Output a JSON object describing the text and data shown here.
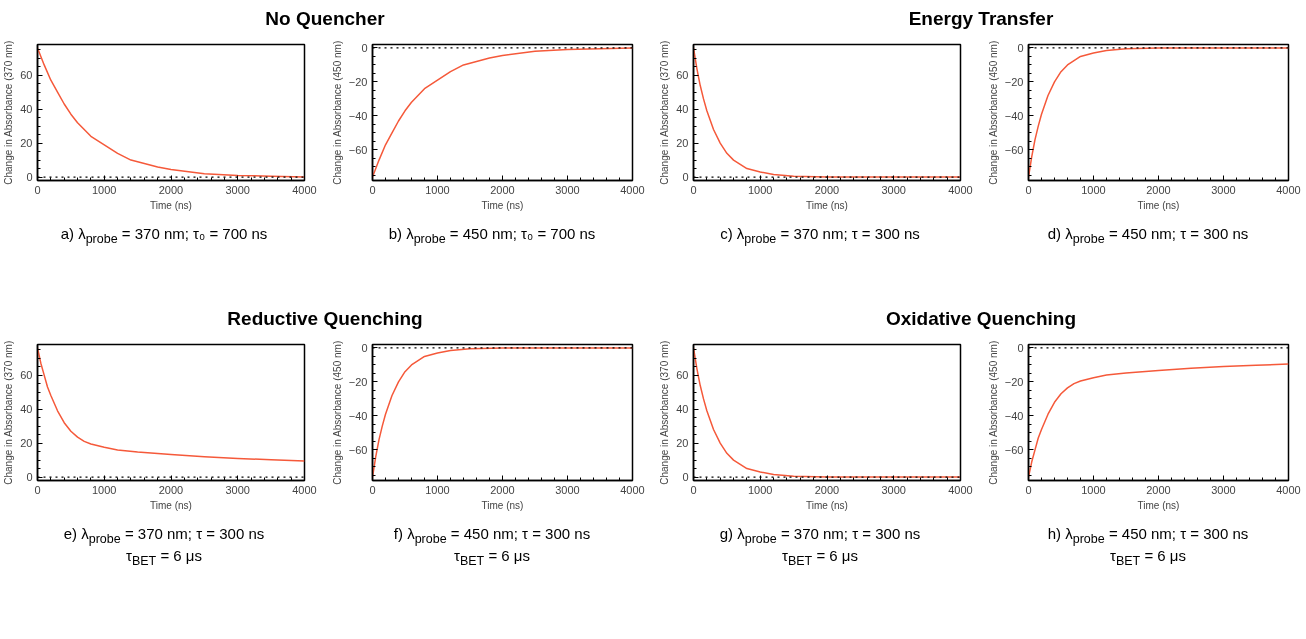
{
  "chart_data": [
    {
      "type": "line",
      "title": "No Quencher",
      "xlabel": "Time (ns)",
      "ylabel": "Change in Absorbance (370 nm)",
      "x": [
        0,
        100,
        200,
        300,
        400,
        500,
        600,
        800,
        1000,
        1200,
        1400,
        1600,
        1800,
        2000,
        2500,
        3000,
        3500,
        4000
      ],
      "series": [
        {
          "color": "#f5593a",
          "values": [
            76,
            66,
            57,
            50,
            43,
            37,
            32,
            24,
            19,
            14,
            10,
            8,
            6,
            4.5,
            2,
            1,
            0.5,
            0
          ]
        }
      ],
      "xlim": [
        0,
        4000
      ],
      "ylim": [
        -2,
        78
      ],
      "xticks": [
        0,
        1000,
        2000,
        3000,
        4000
      ],
      "yticks": [
        0,
        20,
        40,
        60
      ],
      "grid": false,
      "line_style": "solid",
      "ref_lines": [
        {
          "axis": "y",
          "value": 0,
          "label": null,
          "color": "#000000",
          "line_style": "dotted"
        }
      ],
      "annotations": [
        "a) λ$_{probe}$ = 370 nm; τ₀ = 700 ns"
      ]
    },
    {
      "type": "line",
      "xlabel": "Time (ns)",
      "ylabel": "Change in Absorbance (450 nm)",
      "x": [
        0,
        100,
        200,
        300,
        400,
        500,
        600,
        800,
        1000,
        1200,
        1400,
        1600,
        1800,
        2000,
        2500,
        3000,
        3500,
        4000
      ],
      "series": [
        {
          "color": "#f5593a",
          "values": [
            -76,
            -66,
            -57,
            -50,
            -43,
            -37,
            -32,
            -24,
            -19,
            -14,
            -10,
            -8,
            -6,
            -4.5,
            -2,
            -1,
            -0.5,
            0
          ]
        }
      ],
      "xlim": [
        0,
        4000
      ],
      "ylim": [
        -78,
        2
      ],
      "xticks": [
        0,
        1000,
        2000,
        3000,
        4000
      ],
      "yticks": [
        -60,
        -40,
        -20,
        0
      ],
      "grid": false,
      "line_style": "solid",
      "ref_lines": [
        {
          "axis": "y",
          "value": 0,
          "label": null,
          "color": "#000000",
          "line_style": "dotted"
        }
      ],
      "annotations": [
        "b) λ$_{probe}$ = 450 nm; τ₀ = 700 ns"
      ]
    },
    {
      "type": "line",
      "title": "Energy Transfer",
      "xlabel": "Time (ns)",
      "ylabel": "Change in Absorbance (370 nm)",
      "x": [
        0,
        50,
        100,
        150,
        200,
        300,
        400,
        500,
        600,
        800,
        1000,
        1200,
        1500,
        2000,
        3000,
        4000
      ],
      "series": [
        {
          "color": "#f5593a",
          "values": [
            76,
            64,
            54,
            46,
            39,
            28,
            20,
            14,
            10,
            5,
            3,
            1.5,
            0.5,
            0,
            0,
            0
          ]
        }
      ],
      "xlim": [
        0,
        4000
      ],
      "ylim": [
        -2,
        78
      ],
      "xticks": [
        0,
        1000,
        2000,
        3000,
        4000
      ],
      "yticks": [
        0,
        20,
        40,
        60
      ],
      "grid": false,
      "line_style": "solid",
      "ref_lines": [
        {
          "axis": "y",
          "value": 0,
          "label": null,
          "color": "#000000",
          "line_style": "dotted"
        }
      ],
      "annotations": [
        "c) λ$_{probe}$ = 370 nm; τ = 300 ns"
      ]
    },
    {
      "type": "line",
      "xlabel": "Time (ns)",
      "ylabel": "Change in Absorbance (450 nm)",
      "x": [
        0,
        50,
        100,
        150,
        200,
        300,
        400,
        500,
        600,
        800,
        1000,
        1200,
        1500,
        2000,
        3000,
        4000
      ],
      "series": [
        {
          "color": "#f5593a",
          "values": [
            -76,
            -64,
            -54,
            -46,
            -39,
            -28,
            -20,
            -14,
            -10,
            -5,
            -3,
            -1.5,
            -0.5,
            0,
            0,
            0
          ]
        }
      ],
      "xlim": [
        0,
        4000
      ],
      "ylim": [
        -78,
        2
      ],
      "xticks": [
        0,
        1000,
        2000,
        3000,
        4000
      ],
      "yticks": [
        -60,
        -40,
        -20,
        0
      ],
      "grid": false,
      "line_style": "solid",
      "ref_lines": [
        {
          "axis": "y",
          "value": 0,
          "label": null,
          "color": "#000000",
          "line_style": "dotted"
        }
      ],
      "annotations": [
        "d) λ$_{probe}$ = 450 nm; τ = 300 ns"
      ]
    },
    {
      "type": "line",
      "title": "Reductive Quenching",
      "xlabel": "Time (ns)",
      "ylabel": "Change in Absorbance (370 nm)",
      "x": [
        0,
        50,
        100,
        150,
        200,
        300,
        400,
        500,
        600,
        700,
        800,
        1000,
        1200,
        1500,
        2000,
        2500,
        3000,
        3500,
        4000
      ],
      "series": [
        {
          "color": "#f5593a",
          "values": [
            76,
            67,
            60,
            53,
            48,
            39,
            32,
            27,
            23.5,
            21,
            19.5,
            17.5,
            16,
            14.8,
            13.3,
            12,
            11,
            10.2,
            9.5
          ]
        }
      ],
      "xlim": [
        0,
        4000
      ],
      "ylim": [
        -2,
        78
      ],
      "xticks": [
        0,
        1000,
        2000,
        3000,
        4000
      ],
      "yticks": [
        0,
        20,
        40,
        60
      ],
      "grid": false,
      "line_style": "solid",
      "ref_lines": [
        {
          "axis": "y",
          "value": 0,
          "label": null,
          "color": "#000000",
          "line_style": "dotted"
        }
      ],
      "annotations": [
        "e) λ$_{probe}$ = 370 nm; τ = 300 ns",
        "τ$_{BET}$ = 6 μs"
      ]
    },
    {
      "type": "line",
      "xlabel": "Time (ns)",
      "ylabel": "Change in Absorbance (450 nm)",
      "x": [
        0,
        50,
        100,
        150,
        200,
        300,
        400,
        500,
        600,
        800,
        1000,
        1200,
        1500,
        2000,
        3000,
        4000
      ],
      "series": [
        {
          "color": "#f5593a",
          "values": [
            -76,
            -64,
            -54,
            -46,
            -39,
            -28,
            -20,
            -14,
            -10,
            -5,
            -3,
            -1.5,
            -0.5,
            0,
            0,
            0
          ]
        }
      ],
      "xlim": [
        0,
        4000
      ],
      "ylim": [
        -78,
        2
      ],
      "xticks": [
        0,
        1000,
        2000,
        3000,
        4000
      ],
      "yticks": [
        -60,
        -40,
        -20,
        0
      ],
      "grid": false,
      "line_style": "solid",
      "ref_lines": [
        {
          "axis": "y",
          "value": 0,
          "label": null,
          "color": "#000000",
          "line_style": "dotted"
        }
      ],
      "annotations": [
        "f) λ$_{probe}$ = 450 nm; τ = 300 ns",
        "τ$_{BET}$ = 6 μs"
      ]
    },
    {
      "type": "line",
      "title": "Oxidative Quenching",
      "xlabel": "Time (ns)",
      "ylabel": "Change in Absorbance (370 nm)",
      "x": [
        0,
        50,
        100,
        150,
        200,
        300,
        400,
        500,
        600,
        800,
        1000,
        1200,
        1500,
        2000,
        3000,
        4000
      ],
      "series": [
        {
          "color": "#f5593a",
          "values": [
            76,
            64,
            54,
            46,
            39,
            28,
            20,
            14,
            10,
            5,
            3,
            1.5,
            0.5,
            0,
            0,
            0
          ]
        }
      ],
      "xlim": [
        0,
        4000
      ],
      "ylim": [
        -2,
        78
      ],
      "xticks": [
        0,
        1000,
        2000,
        3000,
        4000
      ],
      "yticks": [
        0,
        20,
        40,
        60
      ],
      "grid": false,
      "line_style": "solid",
      "ref_lines": [
        {
          "axis": "y",
          "value": 0,
          "label": null,
          "color": "#000000",
          "line_style": "dotted"
        }
      ],
      "annotations": [
        "g) λ$_{probe}$ = 370 nm; τ = 300 ns",
        "τ$_{BET}$ = 6 μs"
      ]
    },
    {
      "type": "line",
      "xlabel": "Time (ns)",
      "ylabel": "Change in Absorbance (450 nm)",
      "x": [
        0,
        50,
        100,
        150,
        200,
        300,
        400,
        500,
        600,
        700,
        800,
        1000,
        1200,
        1500,
        2000,
        2500,
        3000,
        3500,
        4000
      ],
      "series": [
        {
          "color": "#f5593a",
          "values": [
            -76,
            -67,
            -60,
            -53,
            -48,
            -39,
            -32,
            -27,
            -23.5,
            -21,
            -19.5,
            -17.5,
            -16,
            -14.8,
            -13.3,
            -12,
            -11,
            -10.2,
            -9.5
          ]
        }
      ],
      "xlim": [
        0,
        4000
      ],
      "ylim": [
        -78,
        2
      ],
      "xticks": [
        0,
        1000,
        2000,
        3000,
        4000
      ],
      "yticks": [
        -60,
        -40,
        -20,
        0
      ],
      "grid": false,
      "line_style": "solid",
      "ref_lines": [
        {
          "axis": "y",
          "value": 0,
          "label": null,
          "color": "#000000",
          "line_style": "dotted"
        }
      ],
      "annotations": [
        "h) λ$_{probe}$ = 450 nm; τ = 300 ns",
        "τ$_{BET}$ = 6 μs"
      ]
    }
  ]
}
